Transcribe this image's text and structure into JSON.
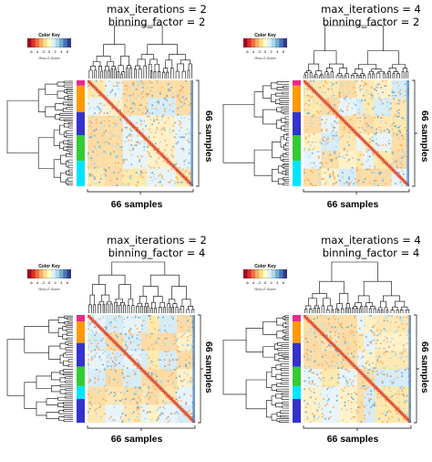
{
  "colors": {
    "scale": [
      "#a50026",
      "#d73027",
      "#f46d43",
      "#fdae61",
      "#fee090",
      "#ffffbf",
      "#e0f3f8",
      "#abd9e9",
      "#74add1",
      "#4575b4",
      "#313695"
    ],
    "groups": [
      "#e7298a",
      "#ff9900",
      "#3333cc",
      "#33cc33",
      "#00e5ff",
      "#3333cc"
    ]
  },
  "common": {
    "key_title": "Color Key",
    "key_sub": "Row Z-Score",
    "key_ticks": [
      "-6",
      "-4",
      "-2",
      "0",
      "2",
      "4",
      "6"
    ],
    "xlabel": "66 samples",
    "ylabel": "66 samples"
  },
  "chart_data": [
    {
      "type": "heatmap",
      "title_line1": "max_iterations = 2",
      "title_line2": "binning_factor = 2",
      "xlabel": "66 samples",
      "ylabel": "66 samples",
      "n": 66,
      "color_key_range": [
        -6,
        6
      ],
      "legend": "Color Key (Row Z-Score)"
    },
    {
      "type": "heatmap",
      "title_line1": "max_iterations = 4",
      "title_line2": "binning_factor = 2",
      "xlabel": "66 samples",
      "ylabel": "66 samples",
      "n": 66,
      "color_key_range": [
        -6,
        6
      ],
      "legend": "Color Key (Row Z-Score)"
    },
    {
      "type": "heatmap",
      "title_line1": "max_iterations = 2",
      "title_line2": "binning_factor = 4",
      "xlabel": "66 samples",
      "ylabel": "66 samples",
      "n": 66,
      "color_key_range": [
        -6,
        6
      ],
      "legend": "Color Key (Row Z-Score)"
    },
    {
      "type": "heatmap",
      "title_line1": "max_iterations = 4",
      "title_line2": "binning_factor = 4",
      "xlabel": "66 samples",
      "ylabel": "66 samples",
      "n": 66,
      "color_key_range": [
        -6,
        6
      ],
      "legend": "Color Key (Row Z-Score)"
    }
  ]
}
